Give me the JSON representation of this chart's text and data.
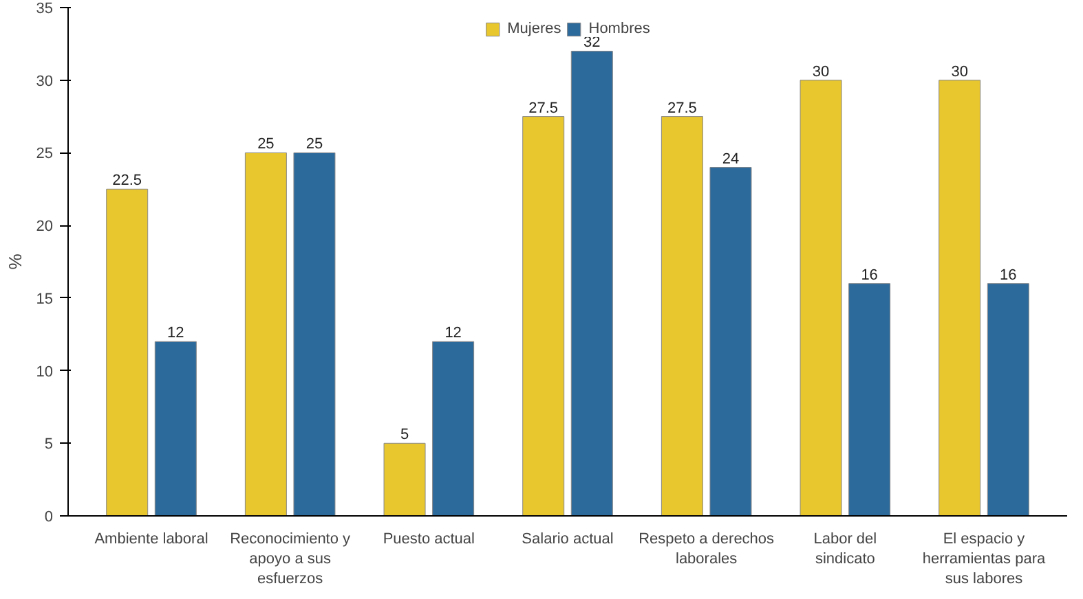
{
  "chart_data": {
    "type": "bar",
    "ylabel": "%",
    "categories": [
      "Ambiente laboral",
      "Reconocimiento y apoyo a sus esfuerzos",
      "Puesto actual",
      "Salario actual",
      "Respeto a derechos laborales",
      "Labor del sindicato",
      "El espacio y herramientas para sus labores"
    ],
    "series": [
      {
        "name": "Mujeres",
        "color": "#e8c62e",
        "values": [
          22.5,
          25,
          5,
          27.5,
          27.5,
          30,
          30
        ]
      },
      {
        "name": "Hombres",
        "color": "#2d6a9c",
        "values": [
          12,
          25,
          12,
          32,
          24,
          16,
          16
        ]
      }
    ],
    "ylim": [
      0,
      35
    ],
    "yticks": [
      0,
      5,
      10,
      15,
      20,
      25,
      30,
      35
    ],
    "grid": false,
    "legend": "top",
    "data_labels": true
  }
}
